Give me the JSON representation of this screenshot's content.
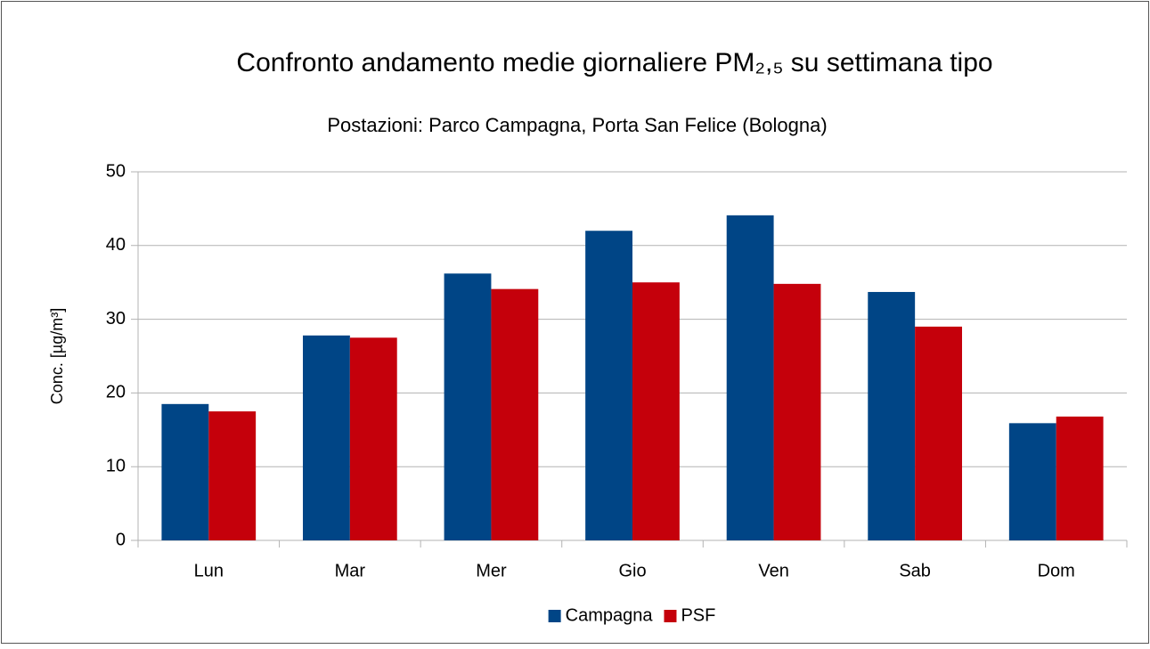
{
  "chart_data": {
    "type": "bar",
    "title": "Confronto andamento medie giornaliere PM₂,₅  su settimana tipo",
    "subtitle": "Postazioni: Parco Campagna, Porta San Felice (Bologna)",
    "y_label": "Conc. [µg/m³]",
    "categories": [
      "Lun",
      "Mar",
      "Mer",
      "Gio",
      "Ven",
      "Sab",
      "Dom"
    ],
    "series": [
      {
        "name": "Campagna",
        "color": "#004586",
        "values": [
          18.5,
          27.8,
          36.2,
          42.0,
          44.1,
          33.7,
          15.9
        ]
      },
      {
        "name": "PSF",
        "color": "#c5000b",
        "values": [
          17.5,
          27.5,
          34.1,
          35.0,
          34.8,
          29.0,
          16.8
        ]
      }
    ],
    "ylim": [
      0,
      50
    ],
    "yticks": [
      0,
      10,
      20,
      30,
      40,
      50
    ],
    "grid": true,
    "legend": "bottom"
  }
}
